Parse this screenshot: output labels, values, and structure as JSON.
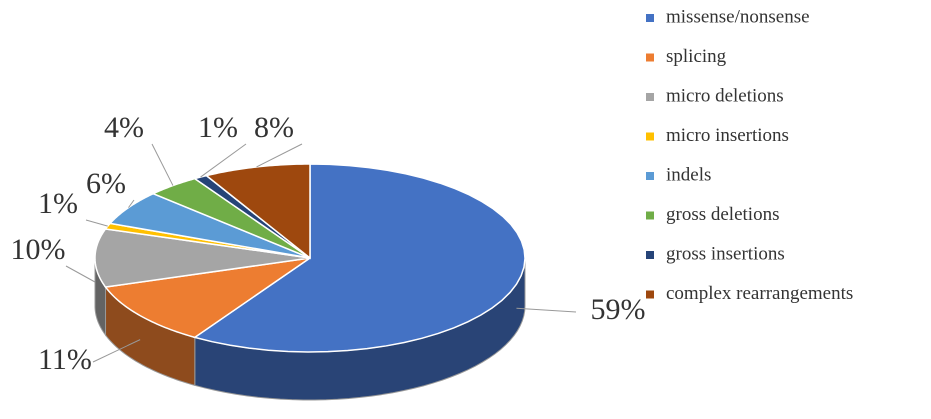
{
  "chart_data": {
    "type": "pie",
    "categories": [
      "missense/nonsense",
      "splicing",
      "micro deletions",
      "micro insertions",
      "indels",
      "gross deletions",
      "gross insertions",
      "complex rearrangements"
    ],
    "values": [
      59,
      11,
      10,
      1,
      6,
      4,
      1,
      8
    ],
    "value_labels": [
      "59%",
      "11%",
      "10%",
      "1%",
      "6%",
      "4%",
      "1%",
      "8%"
    ],
    "colors": [
      "#4472c4",
      "#ed7d31",
      "#a5a5a5",
      "#ffc000",
      "#5b9bd5",
      "#70ad47",
      "#264478",
      "#9e480e"
    ],
    "legend": "right"
  }
}
